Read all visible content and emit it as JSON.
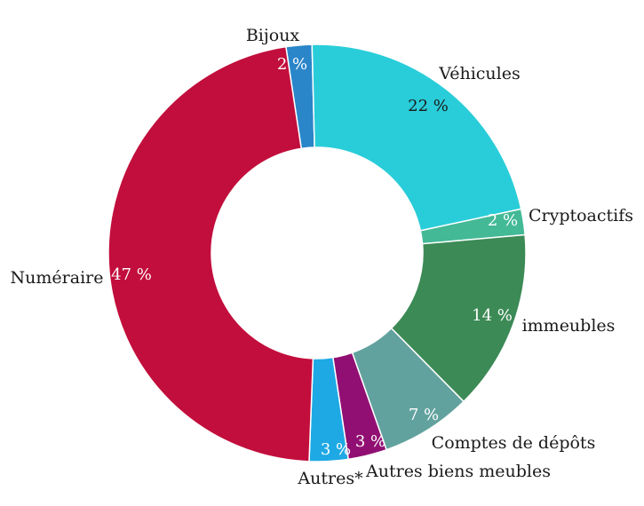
{
  "chart_data": {
    "type": "pie",
    "style": "donut",
    "slices": [
      {
        "name": "Bijoux",
        "value": 2,
        "value_label": "2 %",
        "color": "#2a85c9",
        "text_color": "#ffffff"
      },
      {
        "name": "Véhicules",
        "value": 22,
        "value_label": "22 %",
        "color": "#29cdd9",
        "text_color": "#1a1a1a"
      },
      {
        "name": "Cryptoactifs",
        "value": 2,
        "value_label": "2 %",
        "color": "#43b996",
        "text_color": "#ffffff"
      },
      {
        "name": "immeubles",
        "value": 14,
        "value_label": "14 %",
        "color": "#3c8a56",
        "text_color": "#ffffff"
      },
      {
        "name": "Comptes de dépôts",
        "value": 7,
        "value_label": "7 %",
        "color": "#62a29e",
        "text_color": "#ffffff"
      },
      {
        "name": "Autres biens meubles",
        "value": 3,
        "value_label": "3 %",
        "color": "#910f72",
        "text_color": "#ffffff"
      },
      {
        "name": "Autres*",
        "value": 3,
        "value_label": "3 %",
        "color": "#1ea9e5",
        "text_color": "#ffffff"
      },
      {
        "name": "Numéraire",
        "value": 47,
        "value_label": "47 %",
        "color": "#c20e3c",
        "text_color": "#ffffff"
      }
    ]
  }
}
